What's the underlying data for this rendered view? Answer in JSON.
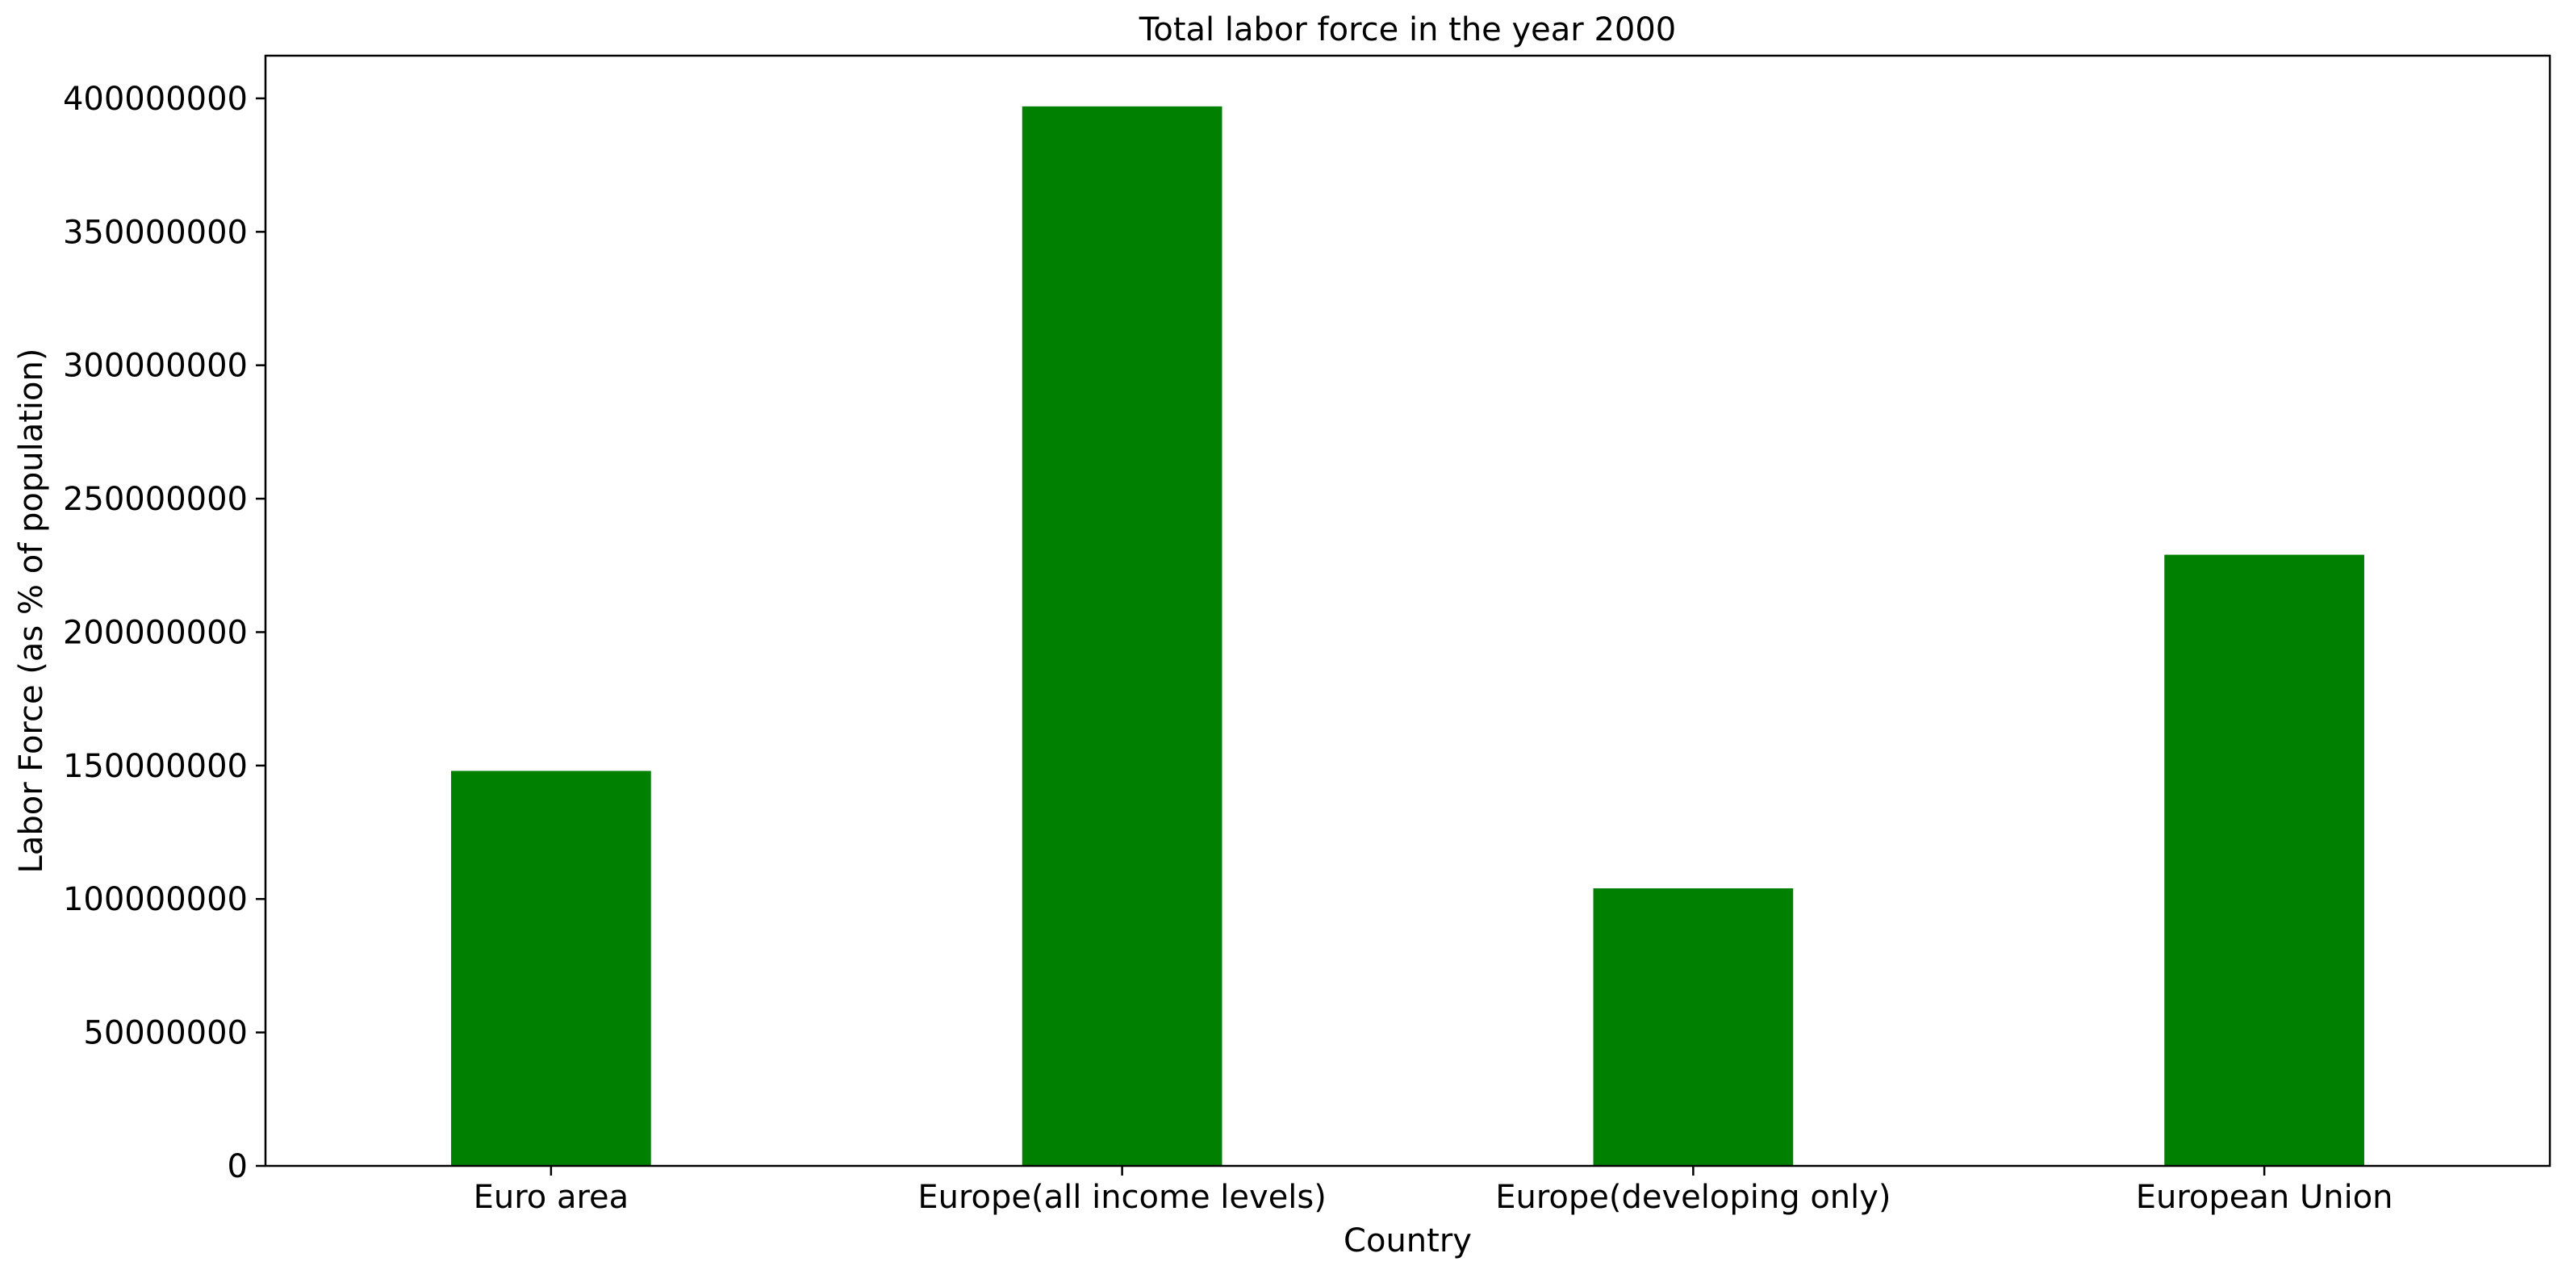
{
  "chart_data": {
    "type": "bar",
    "title": "Total labor force in the year 2000",
    "xlabel": "Country",
    "ylabel": "Labor Force (as % of population)",
    "categories": [
      "Euro area",
      "Europe(all income levels)",
      "Europe(developing only)",
      "European Union"
    ],
    "values": [
      148000000,
      397000000,
      104000000,
      229000000
    ],
    "ylim": [
      0,
      416000000
    ],
    "yticks": [
      0,
      50000000,
      100000000,
      150000000,
      200000000,
      250000000,
      300000000,
      350000000,
      400000000
    ],
    "ytick_labels": [
      "0",
      "50000000",
      "100000000",
      "150000000",
      "200000000",
      "250000000",
      "300000000",
      "350000000",
      "400000000"
    ],
    "bar_color": "#008000",
    "grid": false,
    "legend": "none"
  }
}
